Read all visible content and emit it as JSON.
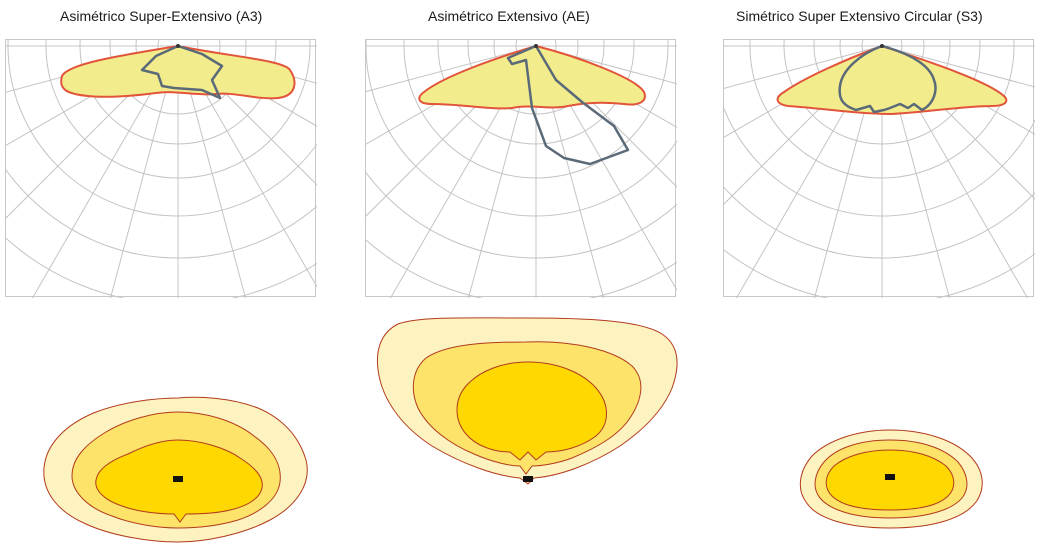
{
  "panels": [
    {
      "title": "Asimétrico Super-Extensivo (A3)",
      "icon": "asymmetric-super-extensive-distribution-diagram"
    },
    {
      "title": "Asimétrico Extensivo (AE)",
      "icon": "asymmetric-extensive-distribution-diagram"
    },
    {
      "title": "Simétrico Super Extensivo Circular (S3)",
      "icon": "symmetric-super-extensive-circular-distribution-diagram"
    }
  ],
  "colors": {
    "grid": "#c4c4c4",
    "outer_fill": "#f3ec8c",
    "outer_stroke": "#e2543a",
    "inner_stroke": "#5b6a78",
    "iso_light": "#fdf3c0",
    "iso_mid": "#fde36a",
    "iso_dark": "#fed800",
    "iso_stroke": "#b23a1c",
    "luminaire": "#111111"
  }
}
